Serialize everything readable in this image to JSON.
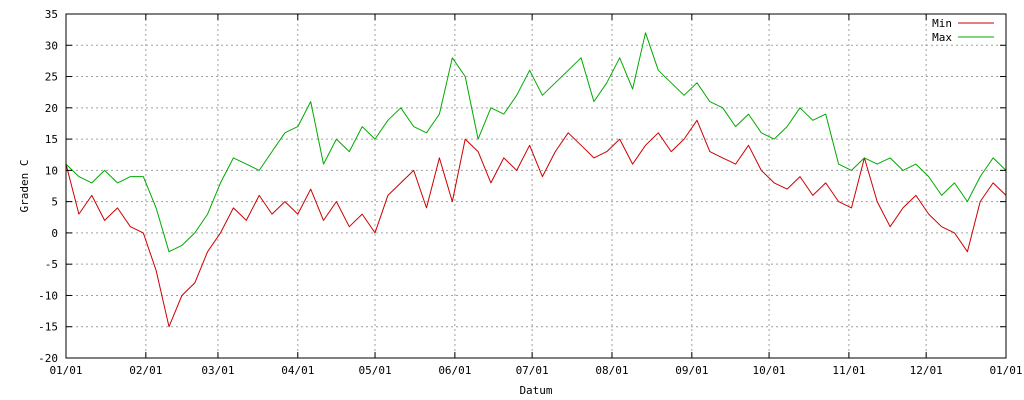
{
  "chart_data": {
    "type": "line",
    "title": "",
    "xlabel": "Datum",
    "ylabel": "Graden C",
    "ylim": [
      -20,
      35
    ],
    "yticks": [
      -20,
      -15,
      -10,
      -5,
      0,
      5,
      10,
      15,
      20,
      25,
      30,
      35
    ],
    "xlim": [
      0,
      365
    ],
    "xticks": [
      0,
      31,
      59,
      90,
      120,
      151,
      181,
      212,
      243,
      273,
      304,
      334,
      365
    ],
    "xtick_labels": [
      "01/01",
      "02/01",
      "03/01",
      "04/01",
      "05/01",
      "06/01",
      "07/01",
      "08/01",
      "09/01",
      "10/01",
      "11/01",
      "12/01",
      "01/01"
    ],
    "grid": true,
    "legend": "top-right",
    "series": [
      {
        "name": "Min",
        "color": "#cc0000",
        "x": [
          0,
          5,
          10,
          15,
          20,
          25,
          30,
          35,
          40,
          45,
          50,
          55,
          60,
          65,
          70,
          75,
          80,
          85,
          90,
          95,
          100,
          105,
          110,
          115,
          120,
          125,
          130,
          135,
          140,
          145,
          150,
          155,
          160,
          165,
          170,
          175,
          180,
          185,
          190,
          195,
          200,
          205,
          210,
          215,
          220,
          225,
          230,
          235,
          240,
          245,
          250,
          255,
          260,
          265,
          270,
          275,
          280,
          285,
          290,
          295,
          300,
          305,
          310,
          315,
          320,
          325,
          330,
          335,
          340,
          345,
          350,
          355,
          360,
          365
        ],
        "values": [
          11,
          3,
          6,
          2,
          4,
          1,
          0,
          -6,
          -15,
          -10,
          -8,
          -3,
          0,
          4,
          2,
          6,
          3,
          5,
          3,
          7,
          2,
          5,
          1,
          3,
          0,
          6,
          8,
          10,
          4,
          12,
          5,
          15,
          13,
          8,
          12,
          10,
          14,
          9,
          13,
          16,
          14,
          12,
          13,
          15,
          11,
          14,
          16,
          13,
          15,
          18,
          13,
          12,
          11,
          14,
          10,
          8,
          7,
          9,
          6,
          8,
          5,
          4,
          12,
          5,
          1,
          4,
          6,
          3,
          1,
          0,
          -3,
          5,
          8,
          6
        ]
      },
      {
        "name": "Max",
        "color": "#00aa00",
        "x": [
          0,
          5,
          10,
          15,
          20,
          25,
          30,
          35,
          40,
          45,
          50,
          55,
          60,
          65,
          70,
          75,
          80,
          85,
          90,
          95,
          100,
          105,
          110,
          115,
          120,
          125,
          130,
          135,
          140,
          145,
          150,
          155,
          160,
          165,
          170,
          175,
          180,
          185,
          190,
          195,
          200,
          205,
          210,
          215,
          220,
          225,
          230,
          235,
          240,
          245,
          250,
          255,
          260,
          265,
          270,
          275,
          280,
          285,
          290,
          295,
          300,
          305,
          310,
          315,
          320,
          325,
          330,
          335,
          340,
          345,
          350,
          355,
          360,
          365
        ],
        "values": [
          11,
          9,
          8,
          10,
          8,
          9,
          9,
          4,
          -3,
          -2,
          0,
          3,
          8,
          12,
          11,
          10,
          13,
          16,
          17,
          21,
          11,
          15,
          13,
          17,
          15,
          18,
          20,
          17,
          16,
          19,
          28,
          25,
          15,
          20,
          19,
          22,
          26,
          22,
          24,
          26,
          28,
          21,
          24,
          28,
          23,
          32,
          26,
          24,
          22,
          24,
          21,
          20,
          17,
          19,
          16,
          15,
          17,
          20,
          18,
          19,
          11,
          10,
          12,
          11,
          12,
          10,
          11,
          9,
          6,
          8,
          5,
          9,
          12,
          10
        ]
      }
    ]
  }
}
